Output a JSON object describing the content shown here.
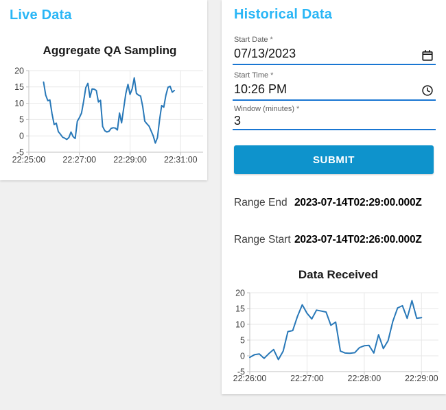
{
  "colors": {
    "accent": "#29b6f6",
    "button": "#0e93cc",
    "field_underline": "#1976d2",
    "line": "#2878b8",
    "grid": "#e7e7e7",
    "axis": "#c2c2c2",
    "tick_text": "#3d3d3d"
  },
  "live_panel": {
    "title": "Live Data"
  },
  "historical_panel": {
    "title": "Historical Data",
    "fields": [
      {
        "label": "Start Date",
        "required": "*",
        "value": "07/13/2023",
        "icon": "calendar-icon"
      },
      {
        "label": "Start Time",
        "required": "*",
        "value": "10:26 PM",
        "icon": "clock-icon"
      },
      {
        "label": "Window (minutes)",
        "required": "*",
        "value": "3",
        "icon": ""
      }
    ],
    "submit_label": "SUBMIT",
    "results": [
      {
        "label": "Range End",
        "value": "2023-07-14T02:29:00.000Z"
      },
      {
        "label": "Range Start",
        "value": "2023-07-14T02:26:00.000Z"
      }
    ]
  },
  "chart_data": [
    {
      "type": "line",
      "title": "Aggregate QA Sampling",
      "xlabel": "",
      "ylabel": "",
      "xlim": [
        "22:25:00",
        "22:31:00"
      ],
      "ylim": [
        -5,
        20
      ],
      "x_ticks": [
        "22:25:00",
        "22:27:00",
        "22:29:00",
        "22:31:00"
      ],
      "y_ticks": [
        20,
        15,
        10,
        5,
        0,
        -5
      ],
      "grid": true,
      "legend": "none",
      "line_color": "#2878b8",
      "series_start_time": "22:25:35",
      "step_seconds": 5,
      "values": [
        16.5,
        12.5,
        10.8,
        11.0,
        6.8,
        3.5,
        3.9,
        1.3,
        0.5,
        -0.4,
        -0.7,
        -1.1,
        -0.5,
        1.2,
        -0.2,
        -0.8,
        4.5,
        5.6,
        7.0,
        10.6,
        14.8,
        16.1,
        11.8,
        14.4,
        14.3,
        13.9,
        10.4,
        10.9,
        2.9,
        1.6,
        1.2,
        1.4,
        2.3,
        2.5,
        2.4,
        1.8,
        7.0,
        4.0,
        8.5,
        13.0,
        15.8,
        12.7,
        14.4,
        17.8,
        13.0,
        12.5,
        12.2,
        9.0,
        4.5,
        3.7,
        3.0,
        1.5,
        0.0,
        -2.2,
        -0.5,
        5.0,
        9.3,
        8.8,
        12.5,
        14.9,
        15.2,
        13.4,
        13.9
      ]
    },
    {
      "type": "line",
      "title": "Data Received",
      "xlabel": "",
      "ylabel": "",
      "xlim": [
        "22:26:00",
        "22:29:00"
      ],
      "ylim": [
        -5,
        20
      ],
      "x_ticks": [
        "22:26:00",
        "22:27:00",
        "22:28:00",
        "22:29:00"
      ],
      "y_ticks": [
        20,
        15,
        10,
        5,
        0,
        -5
      ],
      "grid": true,
      "legend": "none",
      "line_color": "#2878b8",
      "series_start_time": "22:26:00",
      "step_seconds": 5,
      "values": [
        -0.5,
        0.4,
        0.6,
        -0.8,
        0.7,
        2.0,
        -1.2,
        1.5,
        7.7,
        8.0,
        12.5,
        16.2,
        13.5,
        11.7,
        14.5,
        14.2,
        13.9,
        9.7,
        10.7,
        1.5,
        0.9,
        0.8,
        1.0,
        2.6,
        3.2,
        3.3,
        0.9,
        6.7,
        2.3,
        4.8,
        11.0,
        15.2,
        15.9,
        11.9,
        17.5,
        11.9,
        12.1
      ]
    }
  ]
}
